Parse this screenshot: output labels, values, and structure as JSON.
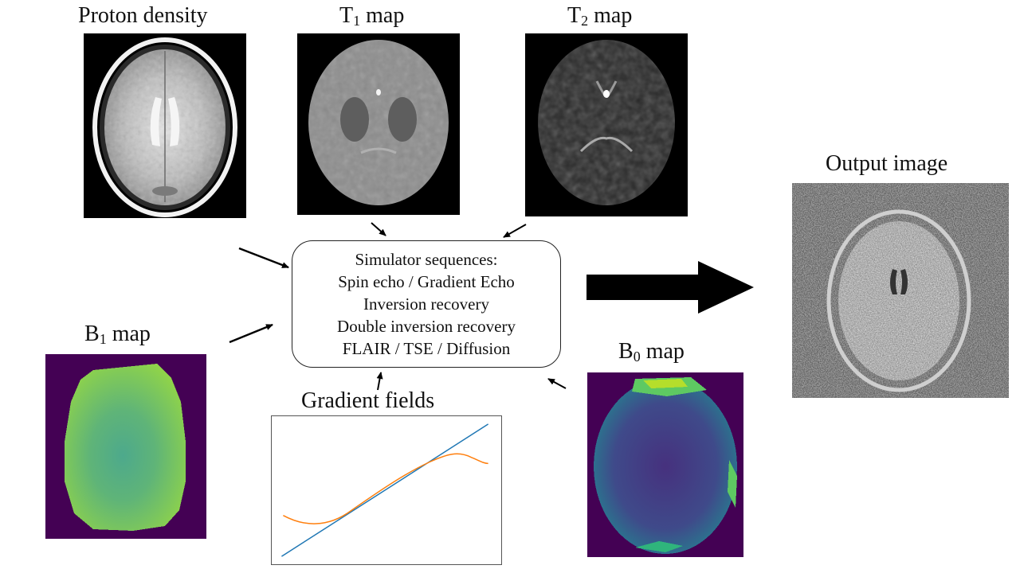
{
  "labels": {
    "proton_density": "Proton density",
    "t1_map_letter": "T",
    "t1_map_sub": "1",
    "t1_map_suffix": " map",
    "t2_map_letter": "T",
    "t2_map_sub": "2",
    "t2_map_suffix": " map",
    "b1_map_letter": "B",
    "b1_map_sub": "1",
    "b1_map_suffix": " map",
    "b0_map_letter": "B",
    "b0_map_sub": "0",
    "b0_map_suffix": " map",
    "gradient_fields": "Gradient fields",
    "output_image": "Output image"
  },
  "simulator": {
    "lines": [
      "Simulator sequences:",
      "Spin echo / Gradient Echo",
      "Inversion recovery",
      "Double inversion recovery",
      "FLAIR / TSE / Diffusion"
    ]
  },
  "colors": {
    "viridis_dark": "#440154",
    "viridis_blue": "#3b528b",
    "viridis_green": "#6dbf5a",
    "viridis_yellow": "#fde725",
    "linear_gradient": "#1f77b4",
    "nonlinear_gradient": "#ff7f0e"
  }
}
